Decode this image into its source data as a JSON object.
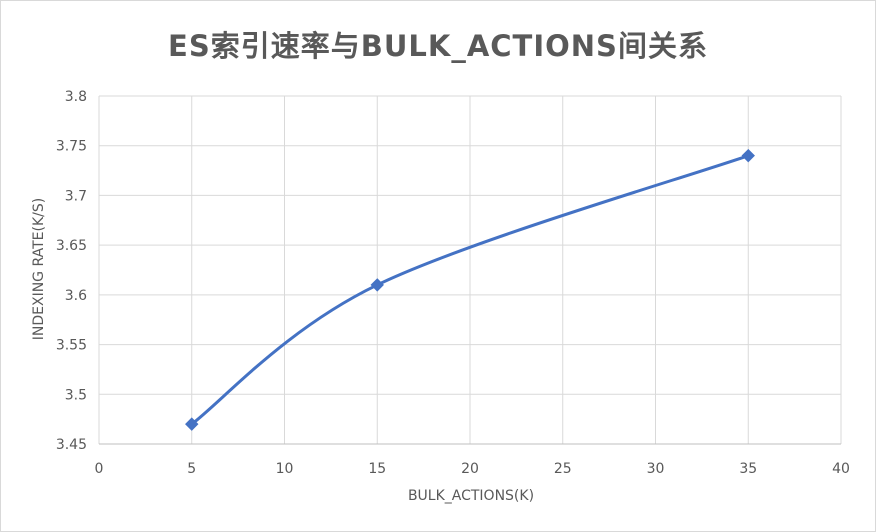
{
  "chart_data": {
    "type": "line",
    "title": "ES索引速率与BULK_ACTIONS间关系",
    "xlabel": "BULK_ACTIONS(K)",
    "ylabel": "INDEXING RATE(K/S)",
    "xlim": [
      0,
      40
    ],
    "ylim": [
      3.45,
      3.8
    ],
    "x_ticks": [
      "0",
      "5",
      "10",
      "15",
      "20",
      "25",
      "30",
      "35",
      "40"
    ],
    "y_ticks": [
      "3.45",
      "3.5",
      "3.55",
      "3.6",
      "3.65",
      "3.7",
      "3.75",
      "3.8"
    ],
    "grid": true,
    "smooth": true,
    "marker": "diamond",
    "series": [
      {
        "color": "#4472c4",
        "x": [
          5,
          15,
          35
        ],
        "y": [
          3.47,
          3.61,
          3.74
        ]
      }
    ]
  }
}
